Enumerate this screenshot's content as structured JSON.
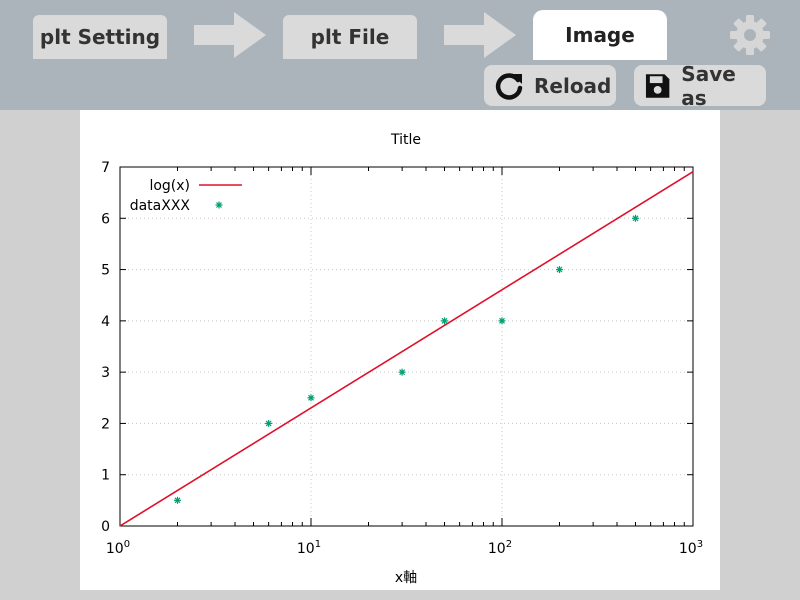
{
  "tabs": {
    "plt_setting": "plt Setting",
    "plt_file": "plt File",
    "image": "Image"
  },
  "actions": {
    "reload_label": "Reload",
    "save_as_label": "Save as"
  },
  "icons": {
    "settings": "gear-icon",
    "reload": "reload-icon",
    "save": "floppy-disk-icon",
    "step_arrow": "arrow-right-icon"
  },
  "colors": {
    "topbar": "#acb4bb",
    "tab_inactive": "#dadada",
    "tab_active": "#ffffff",
    "line_series": "#e0102a",
    "point_series": "#009f72"
  },
  "chart_data": {
    "type": "line",
    "title": "Title",
    "xlabel": "x軸",
    "ylabel": "",
    "x_scale": "log",
    "xlim": [
      1,
      1000
    ],
    "ylim": [
      0,
      7
    ],
    "x_ticks": [
      {
        "value": 1,
        "base": "10",
        "exp": "0"
      },
      {
        "value": 10,
        "base": "10",
        "exp": "1"
      },
      {
        "value": 100,
        "base": "10",
        "exp": "2"
      },
      {
        "value": 1000,
        "base": "10",
        "exp": "3"
      }
    ],
    "y_ticks": [
      "0",
      "1",
      "2",
      "3",
      "4",
      "5",
      "6",
      "7"
    ],
    "grid": true,
    "legend_position": "top-left",
    "series": [
      {
        "name": "log(x)",
        "style": "line",
        "function": "log",
        "x": [
          1,
          1000
        ],
        "y": [
          0,
          6.9078
        ]
      },
      {
        "name": "dataXXX",
        "style": "points",
        "x": [
          2,
          6,
          10,
          30,
          50,
          100,
          200,
          500
        ],
        "y": [
          0.5,
          2,
          2.5,
          3,
          4,
          4,
          5,
          6
        ]
      }
    ]
  }
}
